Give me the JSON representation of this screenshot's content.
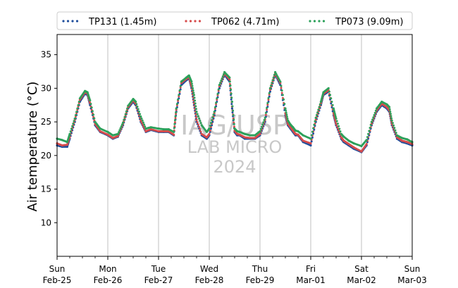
{
  "chart_data": {
    "type": "scatter",
    "ylabel": "Air temperature (°C)",
    "xlabel": "",
    "ylim": [
      5,
      38
    ],
    "xlim": [
      0,
      7
    ],
    "yticks": [
      10,
      15,
      20,
      25,
      30,
      35
    ],
    "grid": "vertical lines at day boundaries",
    "legend_placement": "top, outside plot, 3 columns",
    "x_ticks": [
      {
        "day": "Sun",
        "date": "Feb-25"
      },
      {
        "day": "Mon",
        "date": "Feb-26"
      },
      {
        "day": "Tue",
        "date": "Feb-27"
      },
      {
        "day": "Wed",
        "date": "Feb-28"
      },
      {
        "day": "Thu",
        "date": "Feb-29"
      },
      {
        "day": "Fri",
        "date": "Mar-01"
      },
      {
        "day": "Sat",
        "date": "Mar-02"
      },
      {
        "day": "Sun",
        "date": "Mar-03"
      }
    ],
    "watermark": [
      "IAG/USP",
      "LAB MICRO",
      "2024"
    ],
    "series": [
      {
        "name": "TP131 (1.45m)",
        "color": "#1f4e9c",
        "x": [
          0,
          0.1,
          0.2,
          0.25,
          0.35,
          0.45,
          0.55,
          0.6,
          0.65,
          0.75,
          0.85,
          1.0,
          1.1,
          1.2,
          1.3,
          1.4,
          1.5,
          1.55,
          1.65,
          1.75,
          1.85,
          2.0,
          2.1,
          2.2,
          2.3,
          2.35,
          2.45,
          2.55,
          2.6,
          2.65,
          2.7,
          2.75,
          2.85,
          2.95,
          3.0,
          3.1,
          3.2,
          3.3,
          3.4,
          3.45,
          3.5,
          3.55,
          3.6,
          3.7,
          3.8,
          3.9,
          4.0,
          4.1,
          4.2,
          4.3,
          4.4,
          4.5,
          4.55,
          4.6,
          4.65,
          4.7,
          4.75,
          4.85,
          5.0,
          5.1,
          5.2,
          5.25,
          5.35,
          5.45,
          5.5,
          5.6,
          5.65,
          5.75,
          5.85,
          6.0,
          6.1,
          6.2,
          6.3,
          6.4,
          6.5,
          6.55,
          6.6,
          6.7,
          6.8,
          6.9,
          7.0
        ],
        "y": [
          21.5,
          21.3,
          21.3,
          22.5,
          25.0,
          28.0,
          29.2,
          29.0,
          27.5,
          24.5,
          23.5,
          23.0,
          22.5,
          22.8,
          24.5,
          27.0,
          28.0,
          27.5,
          25.0,
          23.5,
          23.8,
          23.5,
          23.5,
          23.5,
          23.0,
          26.5,
          30.5,
          31.2,
          31.5,
          30.0,
          27.5,
          25.0,
          23.0,
          22.5,
          23.0,
          26.0,
          30.0,
          32.0,
          31.0,
          27.0,
          23.5,
          23.0,
          23.0,
          22.5,
          22.5,
          22.5,
          23.0,
          25.0,
          29.5,
          32.0,
          30.5,
          26.0,
          24.5,
          24.0,
          23.5,
          23.0,
          23.0,
          22.0,
          21.5,
          25.0,
          27.5,
          29.0,
          29.5,
          26.0,
          24.5,
          22.5,
          22.0,
          21.5,
          21.0,
          20.5,
          21.5,
          24.5,
          26.5,
          27.5,
          27.0,
          26.5,
          24.5,
          22.5,
          22.0,
          21.8,
          21.5
        ]
      },
      {
        "name": "TP062 (4.71m)",
        "color": "#d64b4b",
        "x": [
          0,
          0.1,
          0.2,
          0.25,
          0.35,
          0.45,
          0.55,
          0.6,
          0.65,
          0.75,
          0.85,
          1.0,
          1.1,
          1.2,
          1.3,
          1.4,
          1.5,
          1.55,
          1.65,
          1.75,
          1.85,
          2.0,
          2.1,
          2.2,
          2.3,
          2.35,
          2.45,
          2.55,
          2.6,
          2.65,
          2.7,
          2.75,
          2.85,
          2.95,
          3.0,
          3.1,
          3.2,
          3.3,
          3.4,
          3.45,
          3.5,
          3.55,
          3.6,
          3.7,
          3.8,
          3.9,
          4.0,
          4.1,
          4.2,
          4.3,
          4.4,
          4.5,
          4.55,
          4.6,
          4.65,
          4.7,
          4.75,
          4.85,
          5.0,
          5.1,
          5.2,
          5.25,
          5.35,
          5.45,
          5.5,
          5.6,
          5.65,
          5.75,
          5.85,
          6.0,
          6.1,
          6.2,
          6.3,
          6.4,
          6.5,
          6.55,
          6.6,
          6.7,
          6.8,
          6.9,
          7.0
        ],
        "y": [
          21.8,
          21.5,
          21.6,
          22.8,
          25.3,
          28.3,
          29.4,
          29.2,
          27.8,
          24.7,
          23.6,
          23.1,
          22.6,
          22.9,
          24.7,
          27.2,
          28.2,
          27.7,
          25.2,
          23.6,
          23.9,
          23.6,
          23.6,
          23.6,
          23.1,
          26.8,
          30.8,
          31.4,
          31.7,
          30.3,
          27.8,
          25.3,
          23.2,
          22.7,
          23.2,
          26.3,
          30.3,
          32.2,
          31.3,
          27.3,
          23.7,
          23.2,
          23.1,
          22.7,
          22.6,
          22.6,
          23.2,
          25.3,
          29.8,
          32.2,
          30.8,
          26.3,
          24.7,
          24.2,
          23.7,
          23.2,
          23.1,
          22.2,
          21.8,
          25.3,
          27.8,
          29.2,
          29.7,
          26.3,
          24.7,
          22.7,
          22.2,
          21.7,
          21.2,
          20.6,
          21.7,
          24.7,
          26.7,
          27.7,
          27.2,
          26.7,
          24.7,
          22.7,
          22.2,
          22.0,
          21.7
        ]
      },
      {
        "name": "TP073 (9.09m)",
        "color": "#2ca05a",
        "x": [
          0,
          0.1,
          0.2,
          0.25,
          0.35,
          0.45,
          0.55,
          0.6,
          0.65,
          0.75,
          0.85,
          1.0,
          1.1,
          1.2,
          1.3,
          1.4,
          1.5,
          1.55,
          1.65,
          1.75,
          1.85,
          2.0,
          2.1,
          2.2,
          2.3,
          2.35,
          2.45,
          2.55,
          2.6,
          2.65,
          2.7,
          2.75,
          2.85,
          2.95,
          3.0,
          3.1,
          3.2,
          3.3,
          3.4,
          3.45,
          3.5,
          3.55,
          3.6,
          3.7,
          3.8,
          3.9,
          4.0,
          4.1,
          4.2,
          4.3,
          4.4,
          4.5,
          4.55,
          4.6,
          4.65,
          4.7,
          4.75,
          4.85,
          5.0,
          5.1,
          5.2,
          5.25,
          5.35,
          5.45,
          5.5,
          5.6,
          5.65,
          5.75,
          5.85,
          6.0,
          6.1,
          6.2,
          6.3,
          6.4,
          6.5,
          6.55,
          6.6,
          6.7,
          6.8,
          6.9,
          7.0
        ],
        "y": [
          22.5,
          22.3,
          22.0,
          23.2,
          25.5,
          28.5,
          29.6,
          29.4,
          28.2,
          25.0,
          24.0,
          23.5,
          23.0,
          23.2,
          24.9,
          27.4,
          28.4,
          28.0,
          25.8,
          24.0,
          24.2,
          24.0,
          23.9,
          23.9,
          23.5,
          27.0,
          31.0,
          31.6,
          31.9,
          31.0,
          29.0,
          26.5,
          24.5,
          23.5,
          24.0,
          26.5,
          30.5,
          32.4,
          31.6,
          28.0,
          24.0,
          23.6,
          23.5,
          23.2,
          23.0,
          23.0,
          23.6,
          25.6,
          30.0,
          32.4,
          31.0,
          27.0,
          25.2,
          24.6,
          24.2,
          23.7,
          23.6,
          23.0,
          22.5,
          25.6,
          28.0,
          29.4,
          30.0,
          27.0,
          25.5,
          23.2,
          22.8,
          22.2,
          21.8,
          21.4,
          22.3,
          25.0,
          27.0,
          28.0,
          27.6,
          27.2,
          25.2,
          23.0,
          22.6,
          22.4,
          22.0
        ]
      }
    ]
  }
}
